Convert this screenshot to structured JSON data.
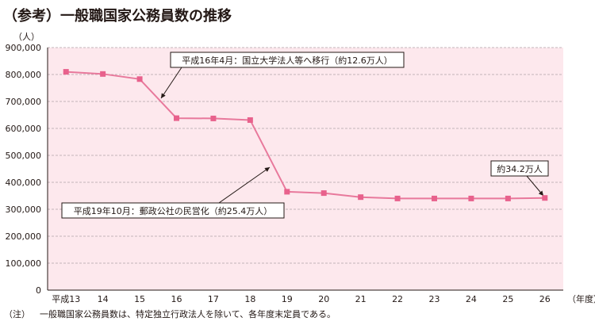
{
  "title": "（参考）一般職国家公務員数の推移",
  "footnote": {
    "prefix": "（注）",
    "text": "一般職国家公務員数は、特定独立行政法人を除いて、各年度末定員である。"
  },
  "colors": {
    "line": "#e8799c",
    "marker": "#e8618c",
    "plot_background": "#fde8ed",
    "grid": "#b0a4a8",
    "axis": "#231815"
  },
  "chart_data": {
    "type": "line",
    "title": "（参考）一般職国家公務員数の推移",
    "ylabel": "（人）",
    "xlabel": "（年度）",
    "categories": [
      "平成13",
      "14",
      "15",
      "16",
      "17",
      "18",
      "19",
      "20",
      "21",
      "22",
      "23",
      "24",
      "25",
      "26"
    ],
    "yticks": [
      "0",
      "100,000",
      "200,000",
      "300,000",
      "400,000",
      "500,000",
      "600,000",
      "700,000",
      "800,000",
      "900,000"
    ],
    "ylim": [
      0,
      900000
    ],
    "grid": true,
    "series": [
      {
        "values": [
          810000,
          802000,
          783000,
          638000,
          637000,
          631000,
          365000,
          360000,
          345000,
          340000,
          340000,
          340000,
          340000,
          342000
        ]
      }
    ],
    "annotations": [
      {
        "text": "平成16年4月：国立大学法人等へ移行（約12.6万人）",
        "target_index": 2.5
      },
      {
        "text": "平成19年10月：郵政公社の民営化（約25.4万人）",
        "target_index": 5.65
      },
      {
        "text": "約34.2万人",
        "target_index": 13
      }
    ]
  }
}
